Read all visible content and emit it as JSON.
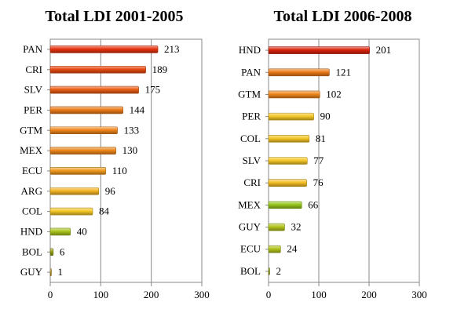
{
  "chart_data": [
    {
      "type": "bar",
      "orientation": "horizontal",
      "title": "Total LDI 2001-2005",
      "categories": [
        "PAN",
        "CRI",
        "SLV",
        "PER",
        "GTM",
        "MEX",
        "ECU",
        "ARG",
        "COL",
        "HND",
        "BOL",
        "GUY"
      ],
      "values": [
        213,
        189,
        175,
        144,
        133,
        130,
        110,
        96,
        84,
        40,
        6,
        1
      ],
      "xlim": [
        0,
        300
      ],
      "xticks": [
        0,
        100,
        200,
        300
      ],
      "grid": "vertical",
      "data_labels": true,
      "colors": [
        "#E6320E",
        "#E84A12",
        "#EA5C14",
        "#EC7A18",
        "#EE841A",
        "#EE861A",
        "#F09A1E",
        "#F4B422",
        "#F4C626",
        "#A8C41A",
        "#94A016",
        "#B89A2A"
      ]
    },
    {
      "type": "bar",
      "orientation": "horizontal",
      "title": "Total LDI 2006-2008",
      "categories": [
        "HND",
        "PAN",
        "GTM",
        "PER",
        "COL",
        "SLV",
        "CRI",
        "MEX",
        "GUY",
        "ECU",
        "BOL"
      ],
      "values": [
        201,
        121,
        102,
        90,
        81,
        77,
        76,
        66,
        32,
        24,
        2
      ],
      "xlim": [
        0,
        300
      ],
      "xticks": [
        0,
        100,
        200,
        300
      ],
      "grid": "vertical",
      "data_labels": true,
      "colors": [
        "#D8220C",
        "#EC7A18",
        "#EE861A",
        "#F4C626",
        "#F4C626",
        "#F4C626",
        "#F4BE24",
        "#94C41A",
        "#B4C41C",
        "#B4C41C",
        "#94A016"
      ]
    }
  ]
}
